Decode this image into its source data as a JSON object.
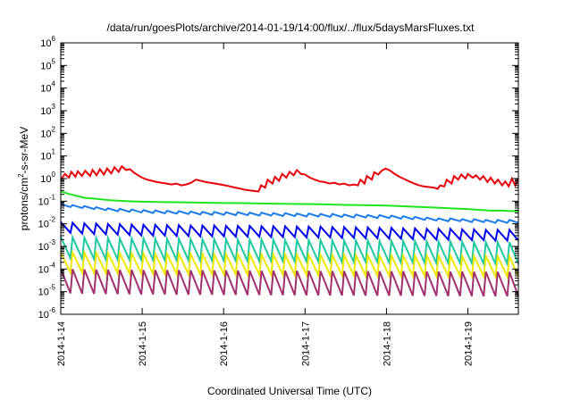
{
  "chart_data": {
    "type": "line",
    "title": "/data/run/goesPlots/archive/2014-01-19/14:00/flux/../flux/5daysMarsFluxes.txt",
    "xlabel": "Coordinated Universal Time (UTC)",
    "ylabel": "protons/cm2-s-sr-MeV",
    "ylabel_parts": {
      "before": "protons/cm",
      "sup": "2",
      "after": "-s-sr-MeV"
    },
    "y_scale": "log",
    "ylim": [
      1e-06,
      1000000.0
    ],
    "y_ticks": [
      {
        "exp": -6,
        "base": "10",
        "sup": "-6"
      },
      {
        "exp": -5,
        "base": "10",
        "sup": "-5"
      },
      {
        "exp": -4,
        "base": "10",
        "sup": "-4"
      },
      {
        "exp": -3,
        "base": "10",
        "sup": "-3"
      },
      {
        "exp": -2,
        "base": "10",
        "sup": "-2"
      },
      {
        "exp": -1,
        "base": "10",
        "sup": "-1"
      },
      {
        "exp": 0,
        "base": "10",
        "sup": "0"
      },
      {
        "exp": 1,
        "base": "10",
        "sup": "1"
      },
      {
        "exp": 2,
        "base": "10",
        "sup": "2"
      },
      {
        "exp": 3,
        "base": "10",
        "sup": "3"
      },
      {
        "exp": 4,
        "base": "10",
        "sup": "4"
      },
      {
        "exp": 5,
        "base": "10",
        "sup": "5"
      },
      {
        "exp": 6,
        "base": "10",
        "sup": "6"
      }
    ],
    "x_ticks": [
      "2014-1-14",
      "2014-1-15",
      "2014-1-16",
      "2014-1-17",
      "2014-1-18",
      "2014-1-19"
    ],
    "xlim_days": [
      0,
      5.62
    ],
    "grid": false,
    "legend": "none",
    "series": [
      {
        "color": "#e8000b",
        "x": [
          0.0,
          0.05,
          0.1,
          0.13,
          0.18,
          0.21,
          0.26,
          0.3,
          0.36,
          0.39,
          0.44,
          0.48,
          0.53,
          0.57,
          0.62,
          0.66,
          0.71,
          0.75,
          0.8,
          0.85,
          0.9,
          0.95,
          1.0,
          1.06,
          1.12,
          1.18,
          1.24,
          1.3,
          1.36,
          1.42,
          1.48,
          1.54,
          1.6,
          1.66,
          1.72,
          1.78,
          1.84,
          1.9,
          1.96,
          2.02,
          2.08,
          2.14,
          2.2,
          2.26,
          2.32,
          2.38,
          2.43,
          2.46,
          2.51,
          2.54,
          2.6,
          2.63,
          2.68,
          2.72,
          2.77,
          2.81,
          2.86,
          2.9,
          2.95,
          3.0,
          3.06,
          3.12,
          3.18,
          3.24,
          3.3,
          3.36,
          3.42,
          3.48,
          3.54,
          3.6,
          3.65,
          3.68,
          3.73,
          3.76,
          3.82,
          3.85,
          3.9,
          3.94,
          3.99,
          4.05,
          4.1,
          4.16,
          4.22,
          4.28,
          4.34,
          4.4,
          4.46,
          4.52,
          4.58,
          4.63,
          4.66,
          4.71,
          4.74,
          4.8,
          4.83,
          4.88,
          4.92,
          4.97,
          5.0,
          5.06,
          5.1,
          5.15,
          5.19,
          5.24,
          5.28,
          5.33,
          5.37,
          5.42,
          5.46,
          5.5,
          5.54,
          5.58,
          5.62
        ],
        "y": [
          0.9,
          1.6,
          1.1,
          2.0,
          1.2,
          2.1,
          1.3,
          2.2,
          1.3,
          2.4,
          1.4,
          2.6,
          1.5,
          2.8,
          1.7,
          3.2,
          2.0,
          3.5,
          2.4,
          2.6,
          1.8,
          1.4,
          1.1,
          0.9,
          0.8,
          0.7,
          0.65,
          0.6,
          0.55,
          0.6,
          0.5,
          0.55,
          0.65,
          0.9,
          0.8,
          0.7,
          0.65,
          0.6,
          0.55,
          0.5,
          0.45,
          0.4,
          0.36,
          0.32,
          0.3,
          0.28,
          0.27,
          0.5,
          0.4,
          0.9,
          0.6,
          1.2,
          0.8,
          1.6,
          1.1,
          2.0,
          1.4,
          2.4,
          1.6,
          1.5,
          1.1,
          0.9,
          0.75,
          0.7,
          0.6,
          0.65,
          0.55,
          0.6,
          0.5,
          0.55,
          0.5,
          0.9,
          0.6,
          1.3,
          0.9,
          1.9,
          1.5,
          2.2,
          2.8,
          2.2,
          1.6,
          1.2,
          0.95,
          0.75,
          0.6,
          0.5,
          0.45,
          0.42,
          0.4,
          0.35,
          0.5,
          0.45,
          0.9,
          0.6,
          1.3,
          0.9,
          1.5,
          1.0,
          1.6,
          1.1,
          1.4,
          0.9,
          1.3,
          0.7,
          1.1,
          0.6,
          0.9,
          0.5,
          0.75,
          0.45,
          1.0,
          0.5,
          1.0
        ]
      },
      {
        "color": "#1fe51f",
        "x": [
          0.0,
          0.1,
          0.2,
          0.3,
          0.4,
          0.5,
          0.6,
          0.7,
          0.8,
          0.9,
          1.0,
          1.2,
          1.4,
          1.6,
          1.8,
          2.0,
          2.2,
          2.4,
          2.6,
          2.8,
          3.0,
          3.2,
          3.4,
          3.6,
          3.8,
          4.0,
          4.2,
          4.4,
          4.6,
          4.8,
          5.0,
          5.1,
          5.2,
          5.3,
          5.4,
          5.5,
          5.62
        ],
        "y": [
          0.27,
          0.21,
          0.17,
          0.14,
          0.13,
          0.12,
          0.11,
          0.105,
          0.1,
          0.098,
          0.095,
          0.092,
          0.09,
          0.088,
          0.085,
          0.083,
          0.082,
          0.08,
          0.078,
          0.076,
          0.075,
          0.073,
          0.07,
          0.068,
          0.066,
          0.064,
          0.06,
          0.056,
          0.052,
          0.048,
          0.045,
          0.042,
          0.04,
          0.038,
          0.039,
          0.037,
          0.036
        ]
      },
      {
        "color": "#1a7bea",
        "base": [
          0.055,
          0.05,
          0.045,
          0.04,
          0.036,
          0.034,
          0.032,
          0.03,
          0.029,
          0.028,
          0.027,
          0.026,
          0.025,
          0.025,
          0.024,
          0.024,
          0.023,
          0.023,
          0.022,
          0.022,
          0.021,
          0.021,
          0.02,
          0.02,
          0.019,
          0.019,
          0.018,
          0.018,
          0.017,
          0.016,
          0.015,
          0.014,
          0.013,
          0.013,
          0.012,
          0.012,
          0.011,
          0.011,
          0.011,
          0.01
        ],
        "amp": 1.35,
        "start": 0.0,
        "period": 0.145
      },
      {
        "color": "#0000ee",
        "base": [
          0.004,
          0.0037,
          0.0035,
          0.0034,
          0.0033,
          0.0032,
          0.0031,
          0.003,
          0.003,
          0.0029,
          0.0029,
          0.0028,
          0.0028,
          0.0028,
          0.0027,
          0.0027,
          0.0027,
          0.0026,
          0.0026,
          0.0026,
          0.0025,
          0.0025,
          0.0025,
          0.0024,
          0.0024,
          0.0023,
          0.0023,
          0.0022,
          0.0022,
          0.0021,
          0.0021,
          0.002,
          0.002,
          0.002,
          0.0019,
          0.0019,
          0.0018,
          0.0018,
          0.0018,
          0.0017
        ],
        "amp": 3.0,
        "start": 0.0,
        "period": 0.145
      },
      {
        "color": "#1ec8a0",
        "base": [
          0.0003,
          0.00028,
          0.00027,
          0.00026,
          0.00026,
          0.00025,
          0.00025,
          0.00025,
          0.00024,
          0.00024,
          0.00024,
          0.00023,
          0.00023,
          0.00023,
          0.00023,
          0.00022,
          0.00022,
          0.00022,
          0.00022,
          0.00021,
          0.00021,
          0.00021,
          0.00021,
          0.0002,
          0.0002,
          0.0002,
          0.0002,
          0.00019,
          0.00019,
          0.00019,
          0.00019,
          0.00018,
          0.00018,
          0.00018,
          0.00018,
          0.00017,
          0.00017,
          0.00017,
          0.00017,
          0.00016
        ],
        "amp": 9.0,
        "start": 0.0,
        "period": 0.145
      },
      {
        "color": "#f0e800",
        "base": [
          7e-05,
          6.8e-05,
          6.6e-05,
          6.5e-05,
          6.4e-05,
          6.3e-05,
          6.2e-05,
          6.1e-05,
          6e-05,
          6e-05,
          5.9e-05,
          5.8e-05,
          5.8e-05,
          5.7e-05,
          5.7e-05,
          5.6e-05,
          5.6e-05,
          5.5e-05,
          5.5e-05,
          5.4e-05,
          5.4e-05,
          5.3e-05,
          5.3e-05,
          5.2e-05,
          5.2e-05,
          5.1e-05,
          5.1e-05,
          5e-05,
          5e-05,
          5e-05,
          4.9e-05,
          4.9e-05,
          4.8e-05,
          4.8e-05,
          4.7e-05,
          4.7e-05,
          4.7e-05,
          4.6e-05,
          4.6e-05,
          4.5e-05
        ],
        "amp": 8.0,
        "start": 0.0,
        "period": 0.145
      },
      {
        "color": "#a0306e",
        "base": [
          8.5e-06,
          8.2e-06,
          8e-06,
          7.9e-06,
          7.8e-06,
          7.7e-06,
          7.6e-06,
          7.5e-06,
          7.5e-06,
          7.4e-06,
          7.4e-06,
          7.3e-06,
          7.3e-06,
          7.2e-06,
          7.2e-06,
          7.1e-06,
          7.1e-06,
          7e-06,
          7e-06,
          7e-06,
          6.9e-06,
          6.9e-06,
          6.8e-06,
          6.8e-06,
          6.8e-06,
          6.7e-06,
          6.7e-06,
          6.6e-06,
          6.6e-06,
          6.6e-06,
          6.5e-06,
          6.5e-06,
          6.4e-06,
          6.4e-06,
          6.4e-06,
          6.3e-06,
          6.3e-06,
          6.3e-06,
          6.2e-06,
          6.2e-06
        ],
        "amp": 12.0,
        "start": 0.0,
        "period": 0.145
      }
    ]
  }
}
